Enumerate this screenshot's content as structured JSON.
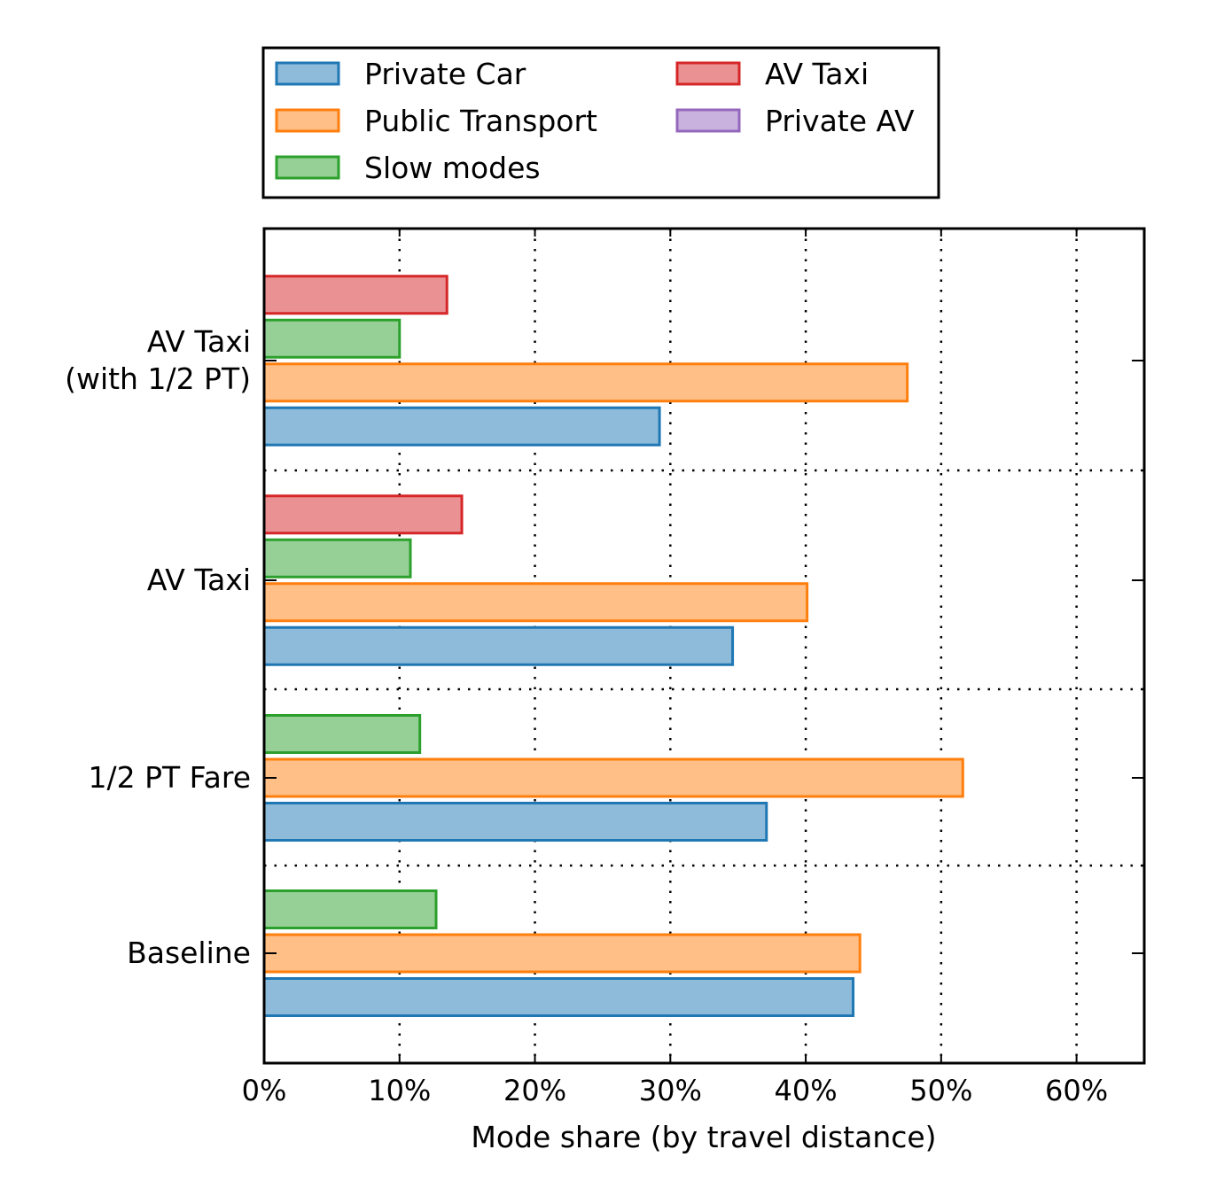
{
  "chart_data": {
    "type": "bar",
    "orientation": "horizontal",
    "xlabel": "Mode share (by travel distance)",
    "ylabel": "",
    "xlim": [
      0,
      65
    ],
    "xticks": [
      0,
      10,
      20,
      30,
      40,
      50,
      60
    ],
    "xtick_labels": [
      "0%",
      "10%",
      "20%",
      "30%",
      "40%",
      "50%",
      "60%"
    ],
    "grid": true,
    "legend_position": "top",
    "categories": [
      "Baseline",
      "1/2 PT Fare",
      "AV Taxi",
      "AV Taxi\n(with 1/2 PT)"
    ],
    "category_labels": [
      [
        "Baseline"
      ],
      [
        "1/2 PT Fare"
      ],
      [
        "AV Taxi"
      ],
      [
        "AV Taxi",
        "(with 1/2 PT)"
      ]
    ],
    "series": [
      {
        "name": "Private Car",
        "fill": "#8fbbda",
        "stroke": "#1f77b4",
        "values": [
          43.5,
          37.1,
          34.6,
          29.2
        ]
      },
      {
        "name": "Public Transport",
        "fill": "#ffbf86",
        "stroke": "#ff7f0e",
        "values": [
          44.0,
          51.6,
          40.1,
          47.5
        ]
      },
      {
        "name": "Slow modes",
        "fill": "#96d096",
        "stroke": "#2ca02c",
        "values": [
          12.7,
          11.5,
          10.8,
          10.0
        ]
      },
      {
        "name": "AV Taxi",
        "fill": "#ea9293",
        "stroke": "#d62728",
        "values": [
          null,
          null,
          14.6,
          13.5
        ]
      },
      {
        "name": "Private AV",
        "fill": "#c9b3de",
        "stroke": "#9467bd",
        "values": [
          null,
          null,
          null,
          null
        ]
      }
    ]
  }
}
